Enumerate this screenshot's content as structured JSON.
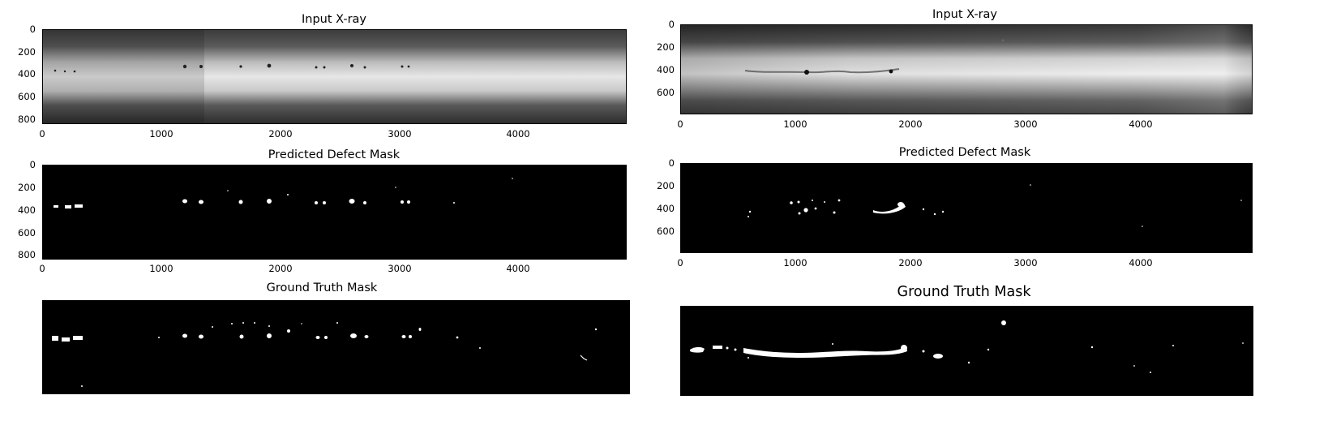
{
  "figures": [
    {
      "input_title": "Input X-ray",
      "pred_title": "Predicted Defect Mask",
      "gt_title": "Ground Truth Mask",
      "input_yticks": [
        "0",
        "200",
        "400",
        "600",
        "800"
      ],
      "input_xticks": [
        "0",
        "1000",
        "2000",
        "3000",
        "4000"
      ],
      "pred_yticks": [
        "0",
        "200",
        "400",
        "600",
        "800"
      ],
      "pred_xticks": [
        "0",
        "1000",
        "2000",
        "3000",
        "4000"
      ]
    },
    {
      "input_title": "Input X-ray",
      "pred_title": "Predicted Defect Mask",
      "gt_title": "Ground Truth Mask",
      "input_yticks": [
        "0",
        "200",
        "400",
        "600"
      ],
      "input_xticks": [
        "0",
        "1000",
        "2000",
        "3000",
        "4000"
      ],
      "pred_yticks": [
        "0",
        "200",
        "400",
        "600"
      ],
      "pred_xticks": [
        "0",
        "1000",
        "2000",
        "3000",
        "4000"
      ]
    }
  ]
}
